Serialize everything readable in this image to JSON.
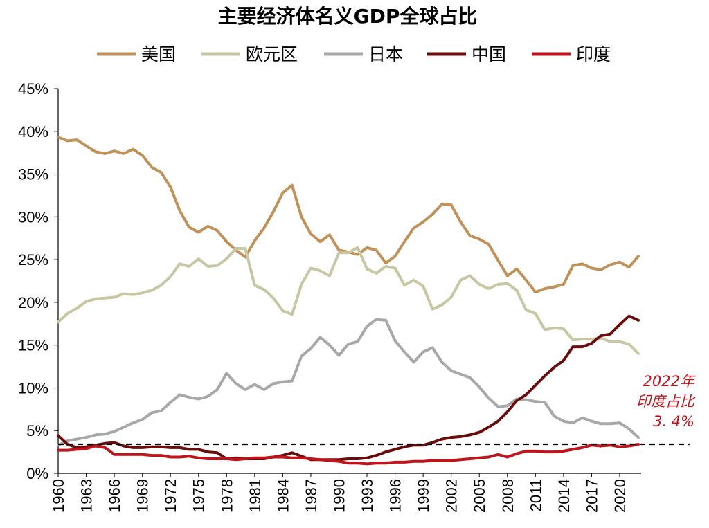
{
  "chart_data": {
    "type": "line",
    "title": "主要经济体名义GDP全球占比",
    "xlabel": "",
    "ylabel": "",
    "ylim": [
      0,
      45
    ],
    "yticks": [
      0,
      5,
      10,
      15,
      20,
      25,
      30,
      35,
      40,
      45
    ],
    "ytick_labels": [
      "0%",
      "5%",
      "10%",
      "15%",
      "20%",
      "25%",
      "30%",
      "35%",
      "40%",
      "45%"
    ],
    "xlim": [
      1960,
      2022
    ],
    "xtick_labels": [
      "1960",
      "1963",
      "1966",
      "1969",
      "1972",
      "1975",
      "1978",
      "1981",
      "1984",
      "1987",
      "1990",
      "1993",
      "1996",
      "1999",
      "2002",
      "2005",
      "2008",
      "2011",
      "2014",
      "2017",
      "2020"
    ],
    "legend_position": "top",
    "x": [
      1960,
      1961,
      1962,
      1963,
      1964,
      1965,
      1966,
      1967,
      1968,
      1969,
      1970,
      1971,
      1972,
      1973,
      1974,
      1975,
      1976,
      1977,
      1978,
      1979,
      1980,
      1981,
      1982,
      1983,
      1984,
      1985,
      1986,
      1987,
      1988,
      1989,
      1990,
      1991,
      1992,
      1993,
      1994,
      1995,
      1996,
      1997,
      1998,
      1999,
      2000,
      2001,
      2002,
      2003,
      2004,
      2005,
      2006,
      2007,
      2008,
      2009,
      2010,
      2011,
      2012,
      2013,
      2014,
      2015,
      2016,
      2017,
      2018,
      2019,
      2020,
      2021,
      2022
    ],
    "series": [
      {
        "name": "美国",
        "color": "#c0925a",
        "values": [
          39.3,
          38.9,
          39.0,
          38.3,
          37.6,
          37.4,
          37.7,
          37.4,
          37.9,
          37.2,
          35.8,
          35.2,
          33.5,
          30.7,
          28.8,
          28.2,
          28.9,
          28.4,
          27.1,
          26.1,
          25.3,
          27.2,
          28.7,
          30.6,
          32.8,
          33.7,
          30.0,
          28.0,
          27.1,
          27.9,
          26.1,
          25.9,
          25.6,
          26.4,
          26.1,
          24.6,
          25.4,
          27.1,
          28.7,
          29.4,
          30.3,
          31.5,
          31.4,
          29.4,
          27.8,
          27.4,
          26.8,
          24.9,
          23.1,
          23.9,
          22.6,
          21.2,
          21.6,
          21.8,
          22.1,
          24.3,
          24.5,
          24.0,
          23.8,
          24.4,
          24.7,
          24.1,
          25.4
        ]
      },
      {
        "name": "欧元区",
        "color": "#c7c7a3",
        "values": [
          17.7,
          18.7,
          19.3,
          20.1,
          20.4,
          20.5,
          20.6,
          21.0,
          20.9,
          21.1,
          21.4,
          22.0,
          23.0,
          24.5,
          24.2,
          25.1,
          24.2,
          24.3,
          25.1,
          26.3,
          26.3,
          22.0,
          21.5,
          20.5,
          19.0,
          18.6,
          22.1,
          24.0,
          23.7,
          23.1,
          25.8,
          25.8,
          26.4,
          23.9,
          23.4,
          24.2,
          24.0,
          22.0,
          22.6,
          21.9,
          19.2,
          19.7,
          20.6,
          22.6,
          23.1,
          22.1,
          21.6,
          22.1,
          22.2,
          21.4,
          19.1,
          18.7,
          16.8,
          17.0,
          16.9,
          15.6,
          15.7,
          15.7,
          15.8,
          15.4,
          15.4,
          15.1,
          14.0
        ]
      },
      {
        "name": "日本",
        "color": "#a8a8a8",
        "values": [
          3.3,
          3.8,
          4.0,
          4.2,
          4.5,
          4.6,
          4.9,
          5.4,
          5.9,
          6.3,
          7.1,
          7.3,
          8.3,
          9.2,
          8.9,
          8.7,
          9.0,
          9.8,
          11.7,
          10.5,
          9.8,
          10.4,
          9.8,
          10.5,
          10.7,
          10.8,
          13.7,
          14.6,
          15.9,
          15.0,
          13.8,
          15.1,
          15.4,
          17.2,
          18.0,
          17.9,
          15.5,
          14.2,
          13.0,
          14.2,
          14.7,
          13.0,
          12.0,
          11.6,
          11.2,
          10.1,
          8.8,
          7.8,
          7.9,
          8.7,
          8.6,
          8.4,
          8.3,
          6.7,
          6.1,
          5.9,
          6.5,
          6.1,
          5.8,
          5.8,
          5.9,
          5.2,
          4.2
        ]
      },
      {
        "name": "中国",
        "color": "#6b0c0c",
        "values": [
          4.4,
          3.4,
          3.0,
          3.1,
          3.3,
          3.5,
          3.6,
          3.2,
          3.0,
          3.0,
          3.1,
          3.1,
          3.0,
          3.0,
          2.8,
          2.8,
          2.5,
          2.4,
          1.7,
          1.8,
          1.7,
          1.7,
          1.7,
          1.9,
          2.1,
          2.4,
          2.0,
          1.6,
          1.6,
          1.6,
          1.6,
          1.7,
          1.7,
          1.8,
          2.1,
          2.5,
          2.8,
          3.1,
          3.3,
          3.3,
          3.6,
          4.0,
          4.2,
          4.3,
          4.5,
          4.8,
          5.4,
          6.1,
          7.2,
          8.5,
          9.2,
          10.3,
          11.4,
          12.4,
          13.2,
          14.8,
          14.8,
          15.2,
          16.1,
          16.3,
          17.4,
          18.4,
          17.9
        ]
      },
      {
        "name": "印度",
        "color": "#c0141c",
        "values": [
          2.7,
          2.7,
          2.8,
          2.9,
          3.2,
          3.0,
          2.2,
          2.2,
          2.2,
          2.2,
          2.1,
          2.1,
          1.9,
          1.9,
          2.0,
          1.8,
          1.7,
          1.7,
          1.7,
          1.6,
          1.7,
          1.8,
          1.8,
          1.9,
          1.9,
          1.8,
          1.8,
          1.7,
          1.6,
          1.5,
          1.4,
          1.2,
          1.2,
          1.1,
          1.2,
          1.2,
          1.3,
          1.3,
          1.4,
          1.4,
          1.5,
          1.5,
          1.5,
          1.6,
          1.7,
          1.8,
          1.9,
          2.2,
          1.9,
          2.3,
          2.6,
          2.6,
          2.5,
          2.5,
          2.6,
          2.8,
          3.0,
          3.3,
          3.2,
          3.3,
          3.1,
          3.2,
          3.4
        ]
      }
    ],
    "reference_line": {
      "value": 3.4,
      "style": "dashed",
      "color": "#000000"
    },
    "annotation": {
      "lines": [
        "2022年",
        "印度占比",
        "3. 4%"
      ]
    }
  }
}
